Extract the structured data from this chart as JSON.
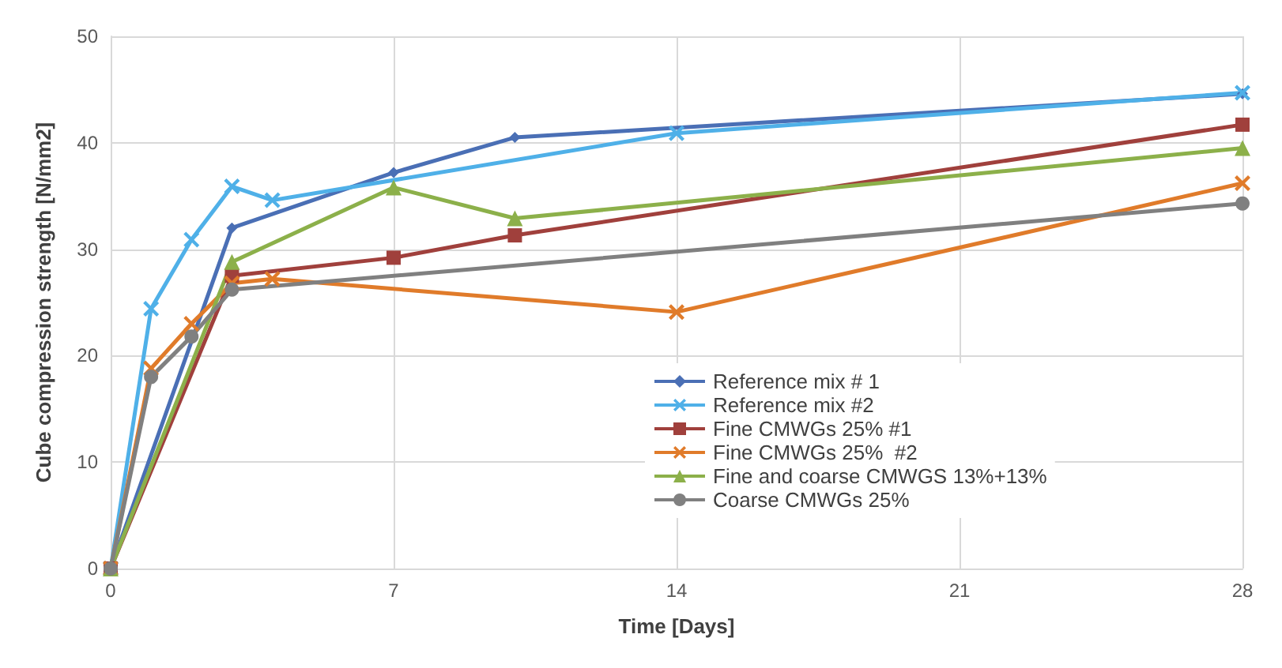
{
  "chart_data": {
    "type": "line",
    "xlabel": "Time [Days]",
    "ylabel": "Cube compression strength [N/mm2]",
    "xlim": [
      0,
      28
    ],
    "xticks": [
      0,
      7,
      14,
      21,
      28
    ],
    "ylim": [
      0,
      50
    ],
    "yticks": [
      0,
      10,
      20,
      30,
      40,
      50
    ],
    "grid": true,
    "legend": "bottom",
    "line_style": "solid",
    "series": [
      {
        "name": "Reference mix # 1",
        "color": "#4a6fb5",
        "marker": "diamond",
        "x": [
          0,
          3,
          7,
          10,
          28
        ],
        "values": [
          0,
          32,
          37.2,
          40.5,
          44.6
        ]
      },
      {
        "name": "Reference mix #2",
        "color": "#4fb0e8",
        "marker": "cross",
        "x": [
          0,
          1,
          2,
          3,
          4,
          14,
          28
        ],
        "values": [
          0,
          24.4,
          30.9,
          35.9,
          34.6,
          40.9,
          44.7
        ]
      },
      {
        "name": "Fine CMWGs 25% #1",
        "color": "#a0403c",
        "marker": "square",
        "x": [
          0,
          3,
          7,
          10,
          28
        ],
        "values": [
          0,
          27.5,
          29.2,
          31.3,
          41.7
        ]
      },
      {
        "name": "Fine CMWGs 25%  #2",
        "color": "#e07b2a",
        "marker": "cross",
        "x": [
          0,
          1,
          2,
          3,
          4,
          14,
          28
        ],
        "values": [
          0,
          18.8,
          23,
          26.8,
          27.2,
          24.1,
          36.2
        ]
      },
      {
        "name": "Fine and coarse CMWGS 13%+13%",
        "color": "#8cb04a",
        "marker": "triangle",
        "x": [
          0,
          3,
          7,
          10,
          28
        ],
        "values": [
          0,
          28.8,
          35.8,
          32.9,
          39.5
        ]
      },
      {
        "name": "Coarse CMWGs 25%",
        "color": "#808080",
        "marker": "circle",
        "x": [
          0,
          1,
          2,
          3,
          28
        ],
        "values": [
          0,
          18,
          21.8,
          26.2,
          34.3
        ]
      }
    ]
  }
}
